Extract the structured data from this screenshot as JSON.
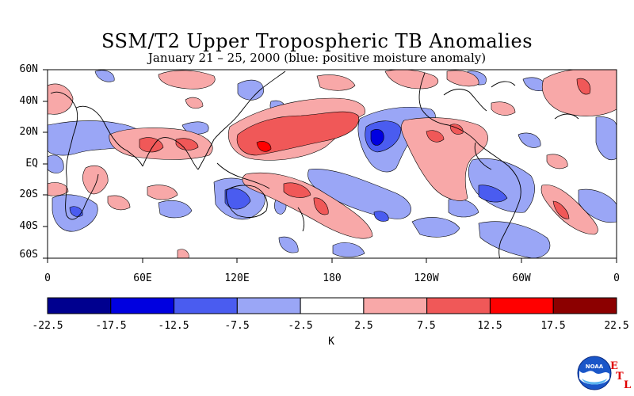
{
  "title": "SSM/T2 Upper Tropospheric TB Anomalies",
  "subtitle": "January 21 – 25, 2000 (blue: positive moisture anomaly)",
  "map": {
    "lat_labels": [
      "60N",
      "40N",
      "20N",
      "EQ",
      "20S",
      "40S",
      "60S"
    ],
    "lon_labels": [
      "0",
      "60E",
      "120E",
      "180",
      "120W",
      "60W",
      "0"
    ]
  },
  "colorbar": {
    "unit": "K",
    "tick_labels": [
      "-22.5",
      "-17.5",
      "-12.5",
      "-7.5",
      "-2.5",
      "2.5",
      "7.5",
      "12.5",
      "17.5",
      "22.5"
    ],
    "colors": [
      "#00008f",
      "#0000e0",
      "#4a5cf0",
      "#9aa6f6",
      "#ffffff",
      "#f8a8a8",
      "#f05858",
      "#ff0000",
      "#8c0000"
    ]
  },
  "logo": {
    "text": "NOAA",
    "letters": [
      "E",
      "T",
      "L"
    ]
  }
}
